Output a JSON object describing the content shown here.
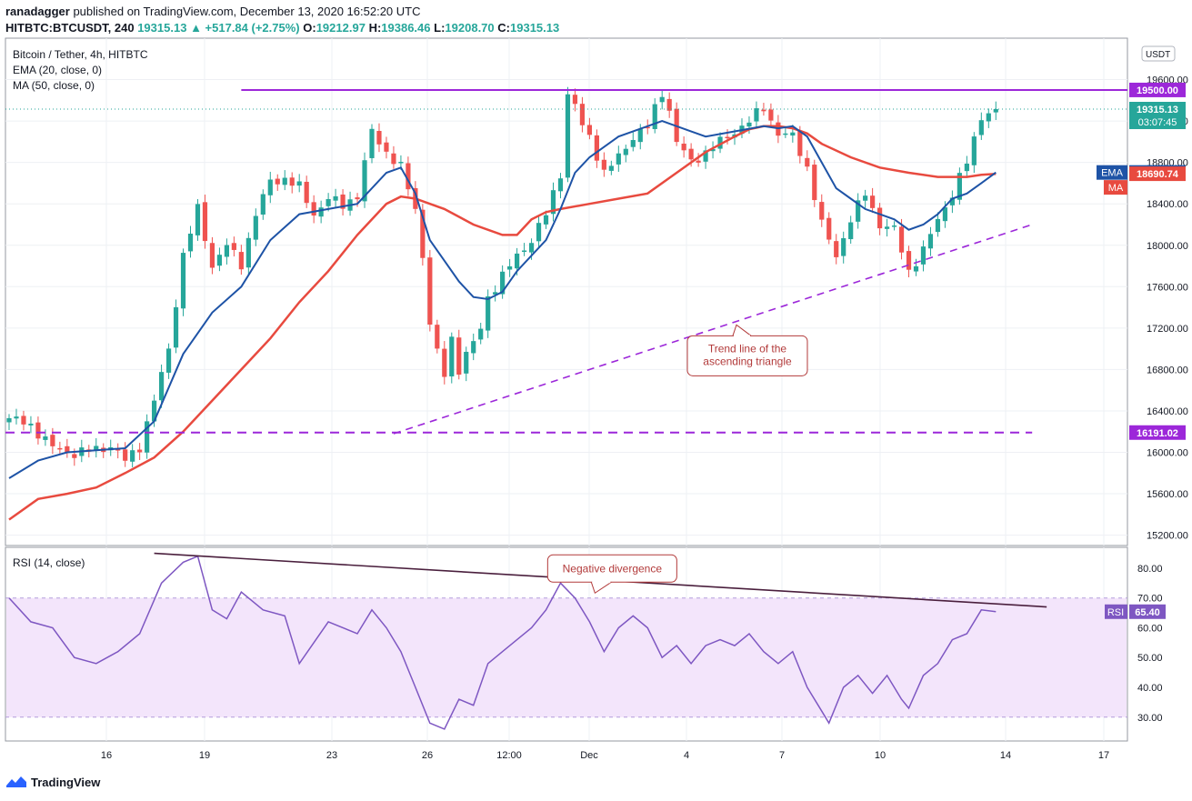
{
  "header": {
    "author": "ranadagger",
    "published": "published on TradingView.com, December 13, 2020 16:52:20 UTC"
  },
  "ohlc": {
    "symbol": "HITBTC:BTCUSDT, 240",
    "last": "19315.13",
    "change": "▲ +517.84 (+2.75%)",
    "o_label": "O:",
    "o": "19212.97",
    "h_label": "H:",
    "h": "19386.46",
    "l_label": "L:",
    "l": "19208.70",
    "c_label": "C:",
    "c": "19315.13"
  },
  "legend": {
    "title": "Bitcoin / Tether, 4h, HITBTC",
    "ema": "EMA (20, close, 0)",
    "ma": "MA (50, close, 0)"
  },
  "footer": {
    "brand": "TradingView"
  },
  "colors": {
    "up": "#26a69a",
    "down": "#ef5350",
    "ema": "#1e53a6",
    "ma": "#e84a3f",
    "level": "#9c27d9",
    "rsi": "#7e57c2",
    "rsi_band": "#f3e5fb",
    "annotation": "#b23a3a"
  },
  "chart_data": [
    {
      "type": "candlestick",
      "title": "Bitcoin / Tether, 4h, HITBTC",
      "currency": "USDT",
      "ylim": [
        15100,
        20000
      ],
      "y_ticks": [
        15200,
        15600,
        16000,
        16400,
        16800,
        17200,
        17600,
        18000,
        18400,
        18800,
        19200,
        19600
      ],
      "y_tick_labels": [
        "15200.00",
        "15600.00",
        "16000.00",
        "16400.00",
        "16800.00",
        "17200.00",
        "17600.00",
        "18000.00",
        "18400.00",
        "18800.00",
        "19200.00",
        "19600.00"
      ],
      "top_tick": "2",
      "x_ticks": [
        "16",
        "19",
        "23",
        "26",
        "12:00",
        "Dec",
        "4",
        "7",
        "10",
        "14",
        "17"
      ],
      "last_price": "19315.13",
      "countdown": "03:07:45",
      "ema_value": "18703.13",
      "ma_value": "18690.74",
      "ema_tag": "EMA",
      "ma_tag": "MA",
      "resistance": "19500.00",
      "support": "16191.02",
      "close_path": [
        [
          0,
          16330
        ],
        [
          3,
          16260
        ],
        [
          6,
          16050
        ],
        [
          9,
          15990
        ],
        [
          12,
          16030
        ],
        [
          14,
          16060
        ],
        [
          16,
          15920
        ],
        [
          18,
          16060
        ],
        [
          20,
          16500
        ],
        [
          22,
          17000
        ],
        [
          24,
          17900
        ],
        [
          26,
          18350
        ],
        [
          28,
          17800
        ],
        [
          30,
          18000
        ],
        [
          32,
          17820
        ],
        [
          34,
          18300
        ],
        [
          36,
          18620
        ],
        [
          38,
          18640
        ],
        [
          40,
          18560
        ],
        [
          42,
          18300
        ],
        [
          44,
          18450
        ],
        [
          46,
          18390
        ],
        [
          48,
          18480
        ],
        [
          50,
          19100
        ],
        [
          52,
          18900
        ],
        [
          54,
          18750
        ],
        [
          56,
          18350
        ],
        [
          57,
          17900
        ],
        [
          58,
          17250
        ],
        [
          59,
          16950
        ],
        [
          60,
          16750
        ],
        [
          61,
          17100
        ],
        [
          62,
          16800
        ],
        [
          63,
          16950
        ],
        [
          64,
          17050
        ],
        [
          65,
          17200
        ],
        [
          66,
          17500
        ],
        [
          68,
          17700
        ],
        [
          70,
          17900
        ],
        [
          72,
          18050
        ],
        [
          74,
          18300
        ],
        [
          76,
          18700
        ],
        [
          77,
          19450
        ],
        [
          78,
          19350
        ],
        [
          79,
          19150
        ],
        [
          80,
          19050
        ],
        [
          82,
          18700
        ],
        [
          84,
          18850
        ],
        [
          86,
          19050
        ],
        [
          88,
          19150
        ],
        [
          90,
          19480
        ],
        [
          91,
          19300
        ],
        [
          92,
          19000
        ],
        [
          94,
          18800
        ],
        [
          96,
          18900
        ],
        [
          98,
          19000
        ],
        [
          100,
          19100
        ],
        [
          102,
          19200
        ],
        [
          104,
          19330
        ],
        [
          106,
          19080
        ],
        [
          108,
          19050
        ],
        [
          110,
          18750
        ],
        [
          112,
          18200
        ],
        [
          114,
          17900
        ],
        [
          116,
          18250
        ],
        [
          118,
          18500
        ],
        [
          120,
          18200
        ],
        [
          122,
          18150
        ],
        [
          124,
          17750
        ],
        [
          126,
          17950
        ],
        [
          128,
          18250
        ],
        [
          130,
          18500
        ],
        [
          132,
          18800
        ],
        [
          134,
          19250
        ],
        [
          136,
          19315
        ]
      ],
      "ema_path": [
        [
          0,
          15750
        ],
        [
          4,
          15920
        ],
        [
          8,
          16000
        ],
        [
          12,
          16020
        ],
        [
          16,
          16040
        ],
        [
          20,
          16300
        ],
        [
          24,
          16950
        ],
        [
          28,
          17350
        ],
        [
          32,
          17600
        ],
        [
          36,
          18050
        ],
        [
          40,
          18300
        ],
        [
          44,
          18350
        ],
        [
          48,
          18400
        ],
        [
          52,
          18700
        ],
        [
          54,
          18750
        ],
        [
          56,
          18500
        ],
        [
          58,
          18050
        ],
        [
          60,
          17850
        ],
        [
          62,
          17650
        ],
        [
          64,
          17500
        ],
        [
          66,
          17480
        ],
        [
          68,
          17550
        ],
        [
          70,
          17750
        ],
        [
          72,
          17900
        ],
        [
          74,
          18050
        ],
        [
          76,
          18350
        ],
        [
          78,
          18700
        ],
        [
          80,
          18850
        ],
        [
          82,
          18950
        ],
        [
          84,
          19050
        ],
        [
          88,
          19150
        ],
        [
          90,
          19200
        ],
        [
          92,
          19150
        ],
        [
          96,
          19050
        ],
        [
          100,
          19100
        ],
        [
          104,
          19150
        ],
        [
          106,
          19130
        ],
        [
          108,
          19150
        ],
        [
          110,
          19050
        ],
        [
          112,
          18800
        ],
        [
          114,
          18550
        ],
        [
          116,
          18450
        ],
        [
          118,
          18350
        ],
        [
          120,
          18300
        ],
        [
          122,
          18250
        ],
        [
          124,
          18150
        ],
        [
          126,
          18200
        ],
        [
          128,
          18300
        ],
        [
          130,
          18450
        ],
        [
          132,
          18500
        ],
        [
          134,
          18600
        ],
        [
          136,
          18703
        ]
      ],
      "ma_path": [
        [
          0,
          15350
        ],
        [
          4,
          15550
        ],
        [
          8,
          15600
        ],
        [
          12,
          15660
        ],
        [
          16,
          15800
        ],
        [
          20,
          15950
        ],
        [
          24,
          16200
        ],
        [
          28,
          16500
        ],
        [
          32,
          16800
        ],
        [
          36,
          17100
        ],
        [
          40,
          17450
        ],
        [
          44,
          17750
        ],
        [
          48,
          18100
        ],
        [
          52,
          18400
        ],
        [
          54,
          18470
        ],
        [
          56,
          18450
        ],
        [
          60,
          18350
        ],
        [
          64,
          18200
        ],
        [
          68,
          18100
        ],
        [
          70,
          18100
        ],
        [
          72,
          18250
        ],
        [
          74,
          18320
        ],
        [
          76,
          18350
        ],
        [
          80,
          18400
        ],
        [
          84,
          18450
        ],
        [
          88,
          18500
        ],
        [
          92,
          18700
        ],
        [
          96,
          18900
        ],
        [
          100,
          19050
        ],
        [
          102,
          19120
        ],
        [
          104,
          19150
        ],
        [
          106,
          19150
        ],
        [
          108,
          19130
        ],
        [
          110,
          19080
        ],
        [
          112,
          18980
        ],
        [
          116,
          18850
        ],
        [
          120,
          18750
        ],
        [
          124,
          18700
        ],
        [
          128,
          18660
        ],
        [
          132,
          18660
        ],
        [
          134,
          18680
        ],
        [
          136,
          18690
        ]
      ],
      "resistance_start_index": 32,
      "support_end_index": 141,
      "trendline": [
        [
          53,
          16180
        ],
        [
          141,
          18200
        ]
      ],
      "annotation": {
        "text": [
          "Trend line of the",
          "ascending triangle"
        ],
        "at": [
          101,
          16950
        ]
      }
    },
    {
      "type": "line",
      "title": "RSI (14, close)",
      "tag": "RSI",
      "last_value": "65.40",
      "ylim": [
        22,
        87
      ],
      "band": [
        30,
        70
      ],
      "y_ticks": [
        30,
        40,
        50,
        60,
        70,
        80
      ],
      "y_tick_labels": [
        "30.00",
        "40.00",
        "50.00",
        "60.00",
        "70.00",
        "80.00"
      ],
      "series": [
        [
          0,
          70
        ],
        [
          3,
          62
        ],
        [
          6,
          60
        ],
        [
          9,
          50
        ],
        [
          12,
          48
        ],
        [
          15,
          52
        ],
        [
          18,
          58
        ],
        [
          21,
          75
        ],
        [
          24,
          82
        ],
        [
          26,
          84
        ],
        [
          28,
          66
        ],
        [
          30,
          63
        ],
        [
          32,
          72
        ],
        [
          35,
          66
        ],
        [
          38,
          64
        ],
        [
          40,
          48
        ],
        [
          44,
          62
        ],
        [
          48,
          58
        ],
        [
          50,
          66
        ],
        [
          52,
          60
        ],
        [
          54,
          52
        ],
        [
          56,
          40
        ],
        [
          58,
          28
        ],
        [
          60,
          26
        ],
        [
          62,
          36
        ],
        [
          64,
          34
        ],
        [
          66,
          48
        ],
        [
          68,
          52
        ],
        [
          70,
          56
        ],
        [
          72,
          60
        ],
        [
          74,
          66
        ],
        [
          76,
          75
        ],
        [
          78,
          70
        ],
        [
          80,
          62
        ],
        [
          82,
          52
        ],
        [
          84,
          60
        ],
        [
          86,
          64
        ],
        [
          88,
          60
        ],
        [
          90,
          50
        ],
        [
          92,
          54
        ],
        [
          94,
          48
        ],
        [
          96,
          54
        ],
        [
          98,
          56
        ],
        [
          100,
          54
        ],
        [
          102,
          58
        ],
        [
          104,
          52
        ],
        [
          106,
          48
        ],
        [
          108,
          52
        ],
        [
          110,
          40
        ],
        [
          112,
          32
        ],
        [
          113,
          28
        ],
        [
          115,
          40
        ],
        [
          117,
          44
        ],
        [
          119,
          38
        ],
        [
          121,
          44
        ],
        [
          123,
          36
        ],
        [
          124,
          33
        ],
        [
          126,
          44
        ],
        [
          128,
          48
        ],
        [
          130,
          56
        ],
        [
          132,
          58
        ],
        [
          134,
          66
        ],
        [
          136,
          65.4
        ]
      ],
      "divergence_line": [
        [
          20,
          85
        ],
        [
          143,
          67
        ]
      ],
      "annotation": {
        "text": [
          "Negative divergence"
        ],
        "at": [
          83,
          80.2
        ]
      }
    }
  ]
}
